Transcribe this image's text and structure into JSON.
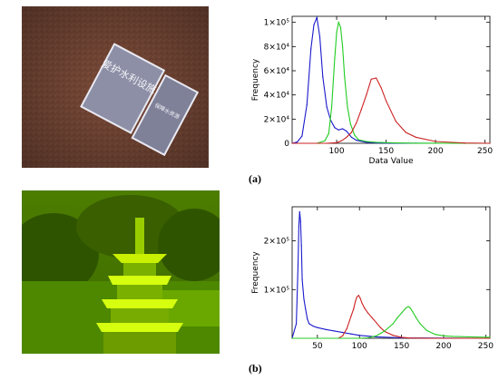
{
  "figure": {
    "panels": [
      {
        "label": "(a)",
        "photo": {
          "description_icon": "photo-sign-on-ground",
          "sign_text_left": "爱护水利设施",
          "sign_text_right": "保障水资源"
        }
      },
      {
        "label": "(b)",
        "photo": {
          "description_icon": "photo-pagoda-green"
        }
      }
    ]
  },
  "chart_data": [
    {
      "type": "line",
      "xlabel": "Data Value",
      "ylabel": "Frequency",
      "xlim": [
        55,
        255
      ],
      "ylim": [
        0,
        105000
      ],
      "xticks": [
        100,
        150,
        200,
        250
      ],
      "yticks": [
        0,
        20000,
        40000,
        60000,
        80000,
        100000
      ],
      "ytick_labels": [
        "0",
        "2×10⁴",
        "4×10⁴",
        "6×10⁴",
        "8×10⁴",
        "1×10⁵"
      ],
      "series": [
        {
          "color": "#1a1acc",
          "x": [
            55,
            60,
            65,
            70,
            74,
            77,
            80,
            83,
            86,
            90,
            94,
            98,
            102,
            106,
            110,
            115,
            120,
            130,
            140,
            160,
            180,
            200,
            230,
            255
          ],
          "y": [
            0,
            1000,
            6000,
            32000,
            78000,
            98000,
            104000,
            88000,
            55000,
            30000,
            19000,
            13000,
            11000,
            12000,
            10000,
            5000,
            2500,
            800,
            300,
            100,
            50,
            20,
            0,
            0
          ]
        },
        {
          "color": "#22cc22",
          "x": [
            55,
            80,
            88,
            92,
            95,
            98,
            100,
            102,
            104,
            106,
            108,
            111,
            114,
            118,
            122,
            130,
            140,
            160,
            180,
            200,
            230,
            255
          ],
          "y": [
            0,
            0,
            2000,
            8000,
            30000,
            70000,
            92000,
            100000,
            96000,
            80000,
            55000,
            30000,
            16000,
            7000,
            3000,
            1500,
            800,
            300,
            100,
            50,
            0,
            0
          ]
        },
        {
          "color": "#cc2222",
          "x": [
            55,
            90,
            100,
            105,
            110,
            115,
            120,
            125,
            130,
            135,
            140,
            145,
            150,
            160,
            170,
            180,
            200,
            230,
            255
          ],
          "y": [
            0,
            0,
            500,
            2000,
            5000,
            9000,
            17000,
            28000,
            40000,
            53000,
            54000,
            46000,
            35000,
            18000,
            9000,
            5000,
            1500,
            200,
            0
          ]
        }
      ]
    },
    {
      "type": "line",
      "xlabel": "",
      "ylabel": "Frequency",
      "xlim": [
        20,
        255
      ],
      "ylim": [
        0,
        270000
      ],
      "xticks": [
        50,
        100,
        150,
        200,
        250
      ],
      "yticks": [
        100000,
        200000
      ],
      "ytick_labels": [
        "1×10⁵",
        "2×10⁵"
      ],
      "series": [
        {
          "color": "#1a1acc",
          "x": [
            20,
            25,
            27,
            28,
            29,
            30,
            31,
            32,
            34,
            36,
            38,
            40,
            45,
            50,
            60,
            70,
            80,
            90,
            100,
            120,
            150,
            200,
            255
          ],
          "y": [
            0,
            30000,
            150000,
            230000,
            260000,
            240000,
            190000,
            120000,
            80000,
            60000,
            40000,
            30000,
            25000,
            22000,
            18000,
            15000,
            12000,
            9000,
            6000,
            3000,
            1000,
            300,
            0
          ]
        },
        {
          "color": "#cc2222",
          "x": [
            20,
            75,
            80,
            85,
            90,
            93,
            95,
            97,
            99,
            101,
            103,
            106,
            110,
            115,
            120,
            125,
            130,
            140,
            150,
            160,
            180,
            200,
            255
          ],
          "y": [
            0,
            0,
            5000,
            20000,
            45000,
            60000,
            75000,
            85000,
            88000,
            82000,
            72000,
            62000,
            52000,
            42000,
            32000,
            22000,
            14000,
            6000,
            2000,
            500,
            0,
            0,
            0
          ]
        },
        {
          "color": "#22cc22",
          "x": [
            20,
            100,
            110,
            120,
            130,
            140,
            145,
            150,
            155,
            158,
            160,
            163,
            167,
            172,
            180,
            190,
            200,
            210,
            230,
            255
          ],
          "y": [
            0,
            0,
            1000,
            5000,
            15000,
            30000,
            42000,
            52000,
            62000,
            65000,
            63000,
            55000,
            43000,
            30000,
            16000,
            8000,
            5000,
            4000,
            3000,
            2000
          ]
        }
      ]
    }
  ]
}
